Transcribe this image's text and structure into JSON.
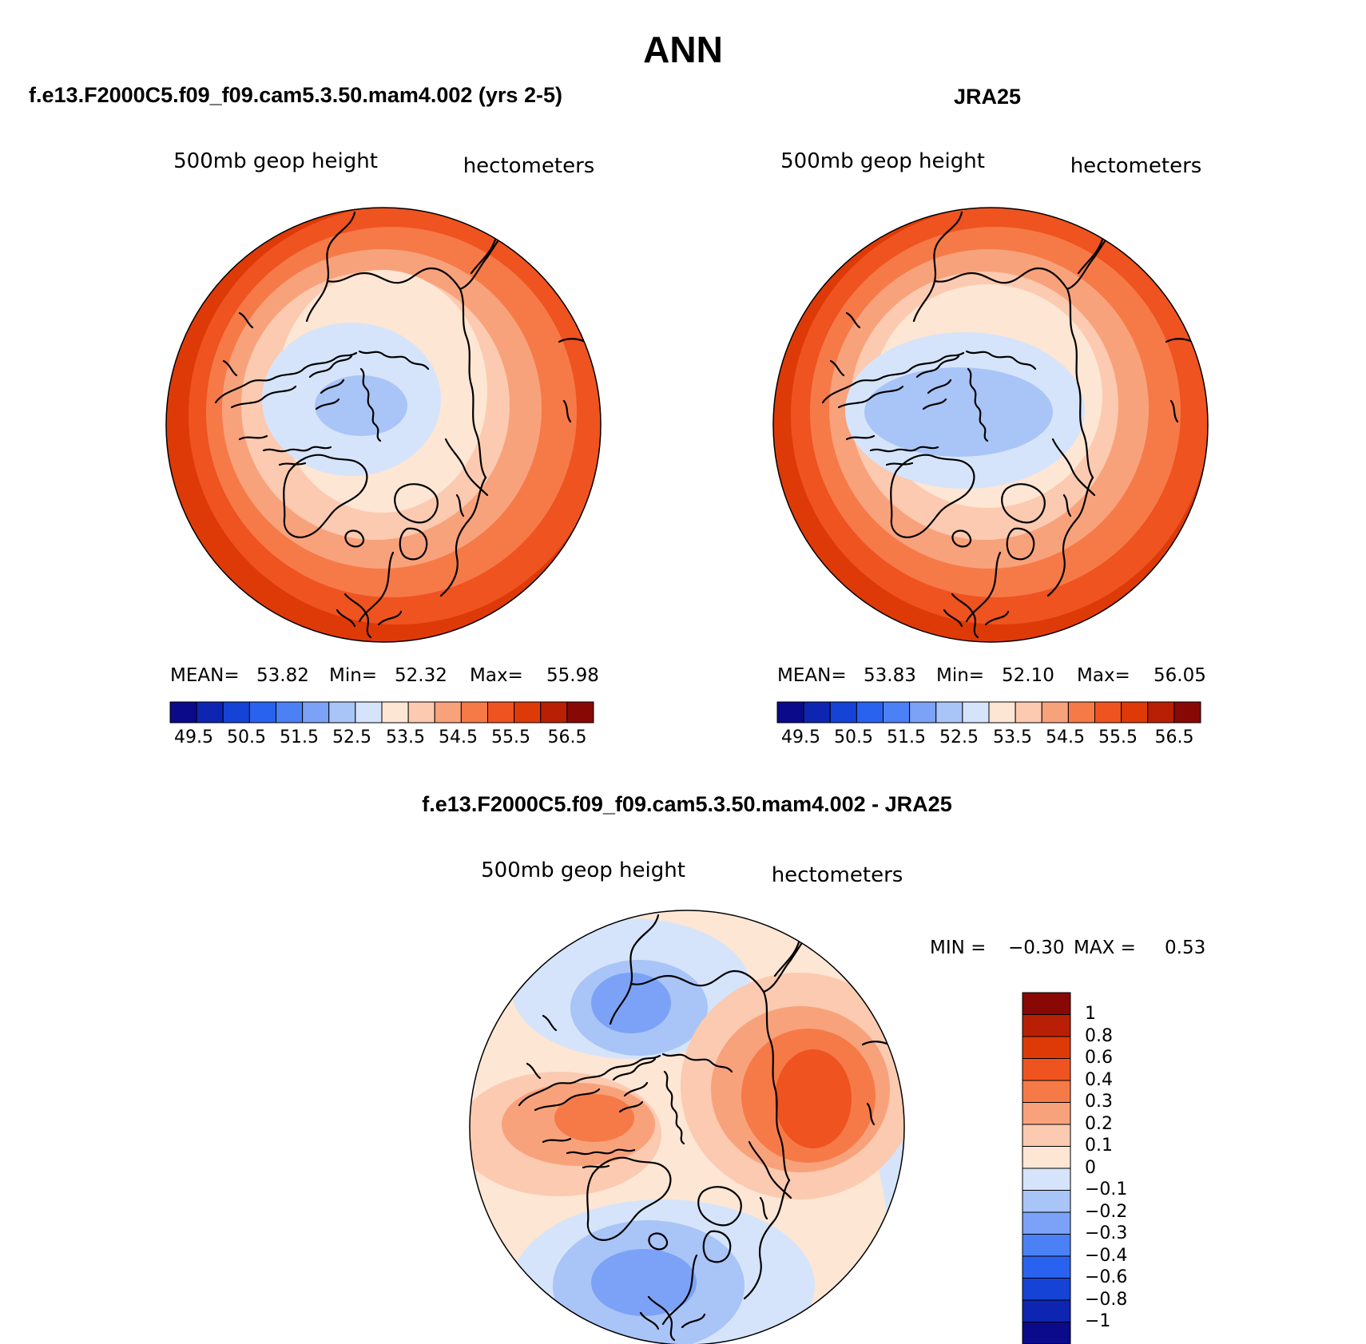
{
  "figure_title": "ANN",
  "chart_data": [
    {
      "type": "heatmap",
      "projection": "north polar stereographic",
      "title": "f.e13.F2000C5.f09_f09.cam5.3.50.mam4.002 (yrs 2-5)",
      "left_label": "500mb geop height",
      "right_label": "hectometers",
      "stats": {
        "mean_label": "MEAN=",
        "mean": "53.82",
        "min_label": "Min=",
        "min": "52.32",
        "max_label": "Max=",
        "max": "55.98"
      },
      "colorbar_ticks": [
        "49.5",
        "50.5",
        "51.5",
        "52.5",
        "53.5",
        "54.5",
        "55.5",
        "56.5"
      ],
      "zlim": [
        49.5,
        56.5
      ]
    },
    {
      "type": "heatmap",
      "projection": "north polar stereographic",
      "title": "JRA25",
      "left_label": "500mb geop height",
      "right_label": "hectometers",
      "stats": {
        "mean_label": "MEAN=",
        "mean": "53.83",
        "min_label": "Min=",
        "min": "52.10",
        "max_label": "Max=",
        "max": "56.05"
      },
      "colorbar_ticks": [
        "49.5",
        "50.5",
        "51.5",
        "52.5",
        "53.5",
        "54.5",
        "55.5",
        "56.5"
      ],
      "zlim": [
        49.5,
        56.5
      ]
    },
    {
      "type": "heatmap",
      "projection": "north polar stereographic",
      "title": "f.e13.F2000C5.f09_f09.cam5.3.50.mam4.002 - JRA25",
      "left_label": "500mb geop height",
      "right_label": "hectometers",
      "stats": {
        "min_label": "MIN =",
        "min": "−0.30",
        "max_label": "MAX =",
        "max": "0.53"
      },
      "colorbar_ticks": [
        "1",
        "0.8",
        "0.6",
        "0.4",
        "0.3",
        "0.2",
        "0.1",
        "0",
        "−0.1",
        "−0.2",
        "−0.3",
        "−0.4",
        "−0.6",
        "−0.8",
        "−1"
      ],
      "zlim": [
        -1,
        1
      ]
    }
  ],
  "palette": {
    "colorbar_16": [
      "#0a0a8a",
      "#0d25b0",
      "#1443d6",
      "#2a62f0",
      "#4c80f5",
      "#7ba2f6",
      "#a9c4f7",
      "#d5e4fa",
      "#fde6d3",
      "#fbcab0",
      "#f8a27c",
      "#f67a48",
      "#ef5320",
      "#de3a08",
      "#b81f05",
      "#870805"
    ],
    "outline": "#000000"
  }
}
